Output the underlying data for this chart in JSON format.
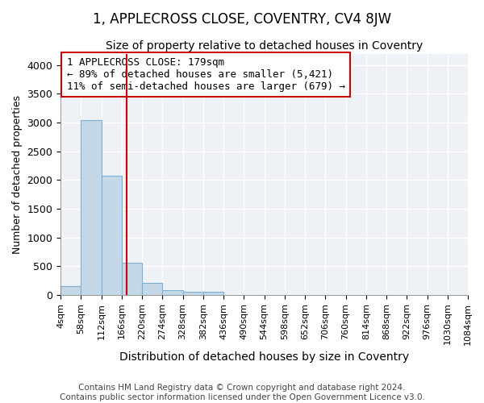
{
  "title": "1, APPLECROSS CLOSE, COVENTRY, CV4 8JW",
  "subtitle": "Size of property relative to detached houses in Coventry",
  "xlabel": "Distribution of detached houses by size in Coventry",
  "ylabel": "Number of detached properties",
  "property_size": 179,
  "annotation_line1": "1 APPLECROSS CLOSE: 179sqm",
  "annotation_line2": "← 89% of detached houses are smaller (5,421)",
  "annotation_line3": "11% of semi-detached houses are larger (679) →",
  "footer_line1": "Contains HM Land Registry data © Crown copyright and database right 2024.",
  "footer_line2": "Contains public sector information licensed under the Open Government Licence v3.0.",
  "bar_color": "#c5d8e8",
  "bar_edgecolor": "#7bafd4",
  "vline_color": "#cc0000",
  "annotation_box_edgecolor": "#cc0000",
  "background_color": "#eef2f7",
  "ylim": [
    0,
    4200
  ],
  "yticks": [
    0,
    500,
    1000,
    1500,
    2000,
    2500,
    3000,
    3500,
    4000
  ],
  "bin_edges": [
    4,
    58,
    112,
    166,
    220,
    274,
    328,
    382,
    436,
    490,
    544,
    598,
    652,
    706,
    760,
    814,
    868,
    922,
    976,
    1030,
    1084
  ],
  "bar_heights": [
    150,
    3050,
    2080,
    560,
    210,
    80,
    50,
    50,
    0,
    0,
    0,
    0,
    0,
    0,
    0,
    0,
    0,
    0,
    0,
    0
  ],
  "title_fontsize": 12,
  "subtitle_fontsize": 10,
  "ylabel_fontsize": 9,
  "xlabel_fontsize": 10,
  "ytick_fontsize": 9,
  "xtick_fontsize": 8,
  "annotation_fontsize": 9,
  "footer_fontsize": 7.5
}
